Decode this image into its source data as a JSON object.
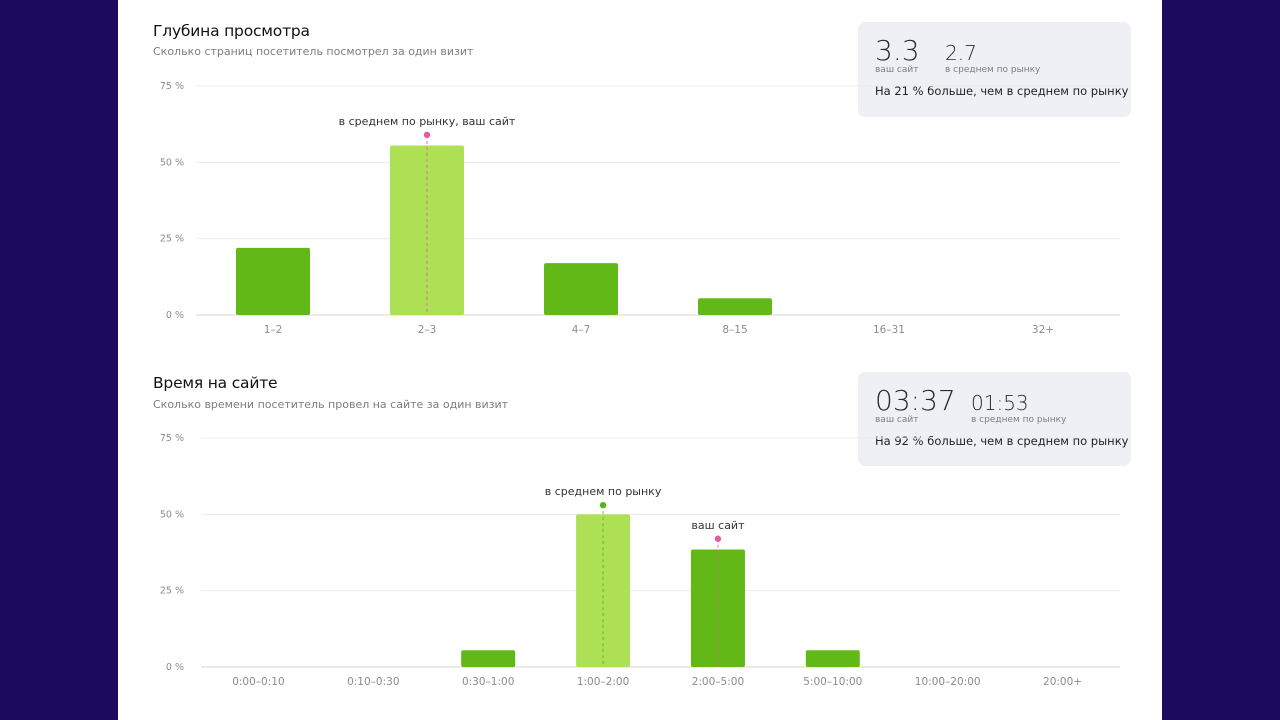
{
  "colors": {
    "background": "#1c0a5e",
    "panel": "#ffffff",
    "bar": "#62b817",
    "bar_highlight": "#aee055",
    "site_marker": "#e85a9c",
    "market_marker": "#55b51c",
    "card": "#eef0f5"
  },
  "depth": {
    "title": "Глубина просмотра",
    "subtitle": "Сколько страниц посетитель посмотрел за один визит",
    "card": {
      "site_value": "3.3",
      "site_caption": "ваш сайт",
      "market_value": "2.7",
      "market_caption": "в среднем по рынку",
      "note": "На 21 % больше, чем в среднем по рынку"
    }
  },
  "time": {
    "title": "Время на сайте",
    "subtitle": "Сколько времени посетитель провел на сайте за один визит",
    "card": {
      "site_value": "03:37",
      "site_caption": "ваш сайт",
      "market_value": "01:53",
      "market_caption": "в среднем по рынку",
      "note": "На 92 % больше, чем в среднем по рынку"
    }
  },
  "chart_data": [
    {
      "type": "bar",
      "title": "Глубина просмотра",
      "categories": [
        "1–2",
        "2–3",
        "4–7",
        "8–15",
        "16–31",
        "32+"
      ],
      "values": [
        22,
        55.5,
        17,
        5.5,
        0,
        0
      ],
      "ylim": [
        0,
        75
      ],
      "yticks": [
        0,
        25,
        50,
        75
      ],
      "ytick_labels": [
        "0 %",
        "25 %",
        "50 %",
        "75 %"
      ],
      "grid": true,
      "highlight_index": 1,
      "annotations": [
        {
          "category_index": 1,
          "text": "в среднем по рынку, ваш сайт",
          "marker": "site",
          "value": 59
        }
      ]
    },
    {
      "type": "bar",
      "title": "Время на сайте",
      "categories": [
        "0:00–0:10",
        "0:10–0:30",
        "0:30–1:00",
        "1:00–2:00",
        "2:00–5:00",
        "5:00–10:00",
        "10:00–20:00",
        "20:00+"
      ],
      "values": [
        0,
        0,
        5.5,
        50,
        38.5,
        5.5,
        0,
        0
      ],
      "ylim": [
        0,
        75
      ],
      "yticks": [
        0,
        25,
        50,
        75
      ],
      "ytick_labels": [
        "0 %",
        "25 %",
        "50 %",
        "75 %"
      ],
      "grid": true,
      "highlight_index": 3,
      "annotations": [
        {
          "category_index": 3,
          "text": "в среднем по рынку",
          "marker": "market",
          "value": 53
        },
        {
          "category_index": 4,
          "text": "ваш сайт",
          "marker": "site",
          "value": 42
        }
      ]
    }
  ]
}
